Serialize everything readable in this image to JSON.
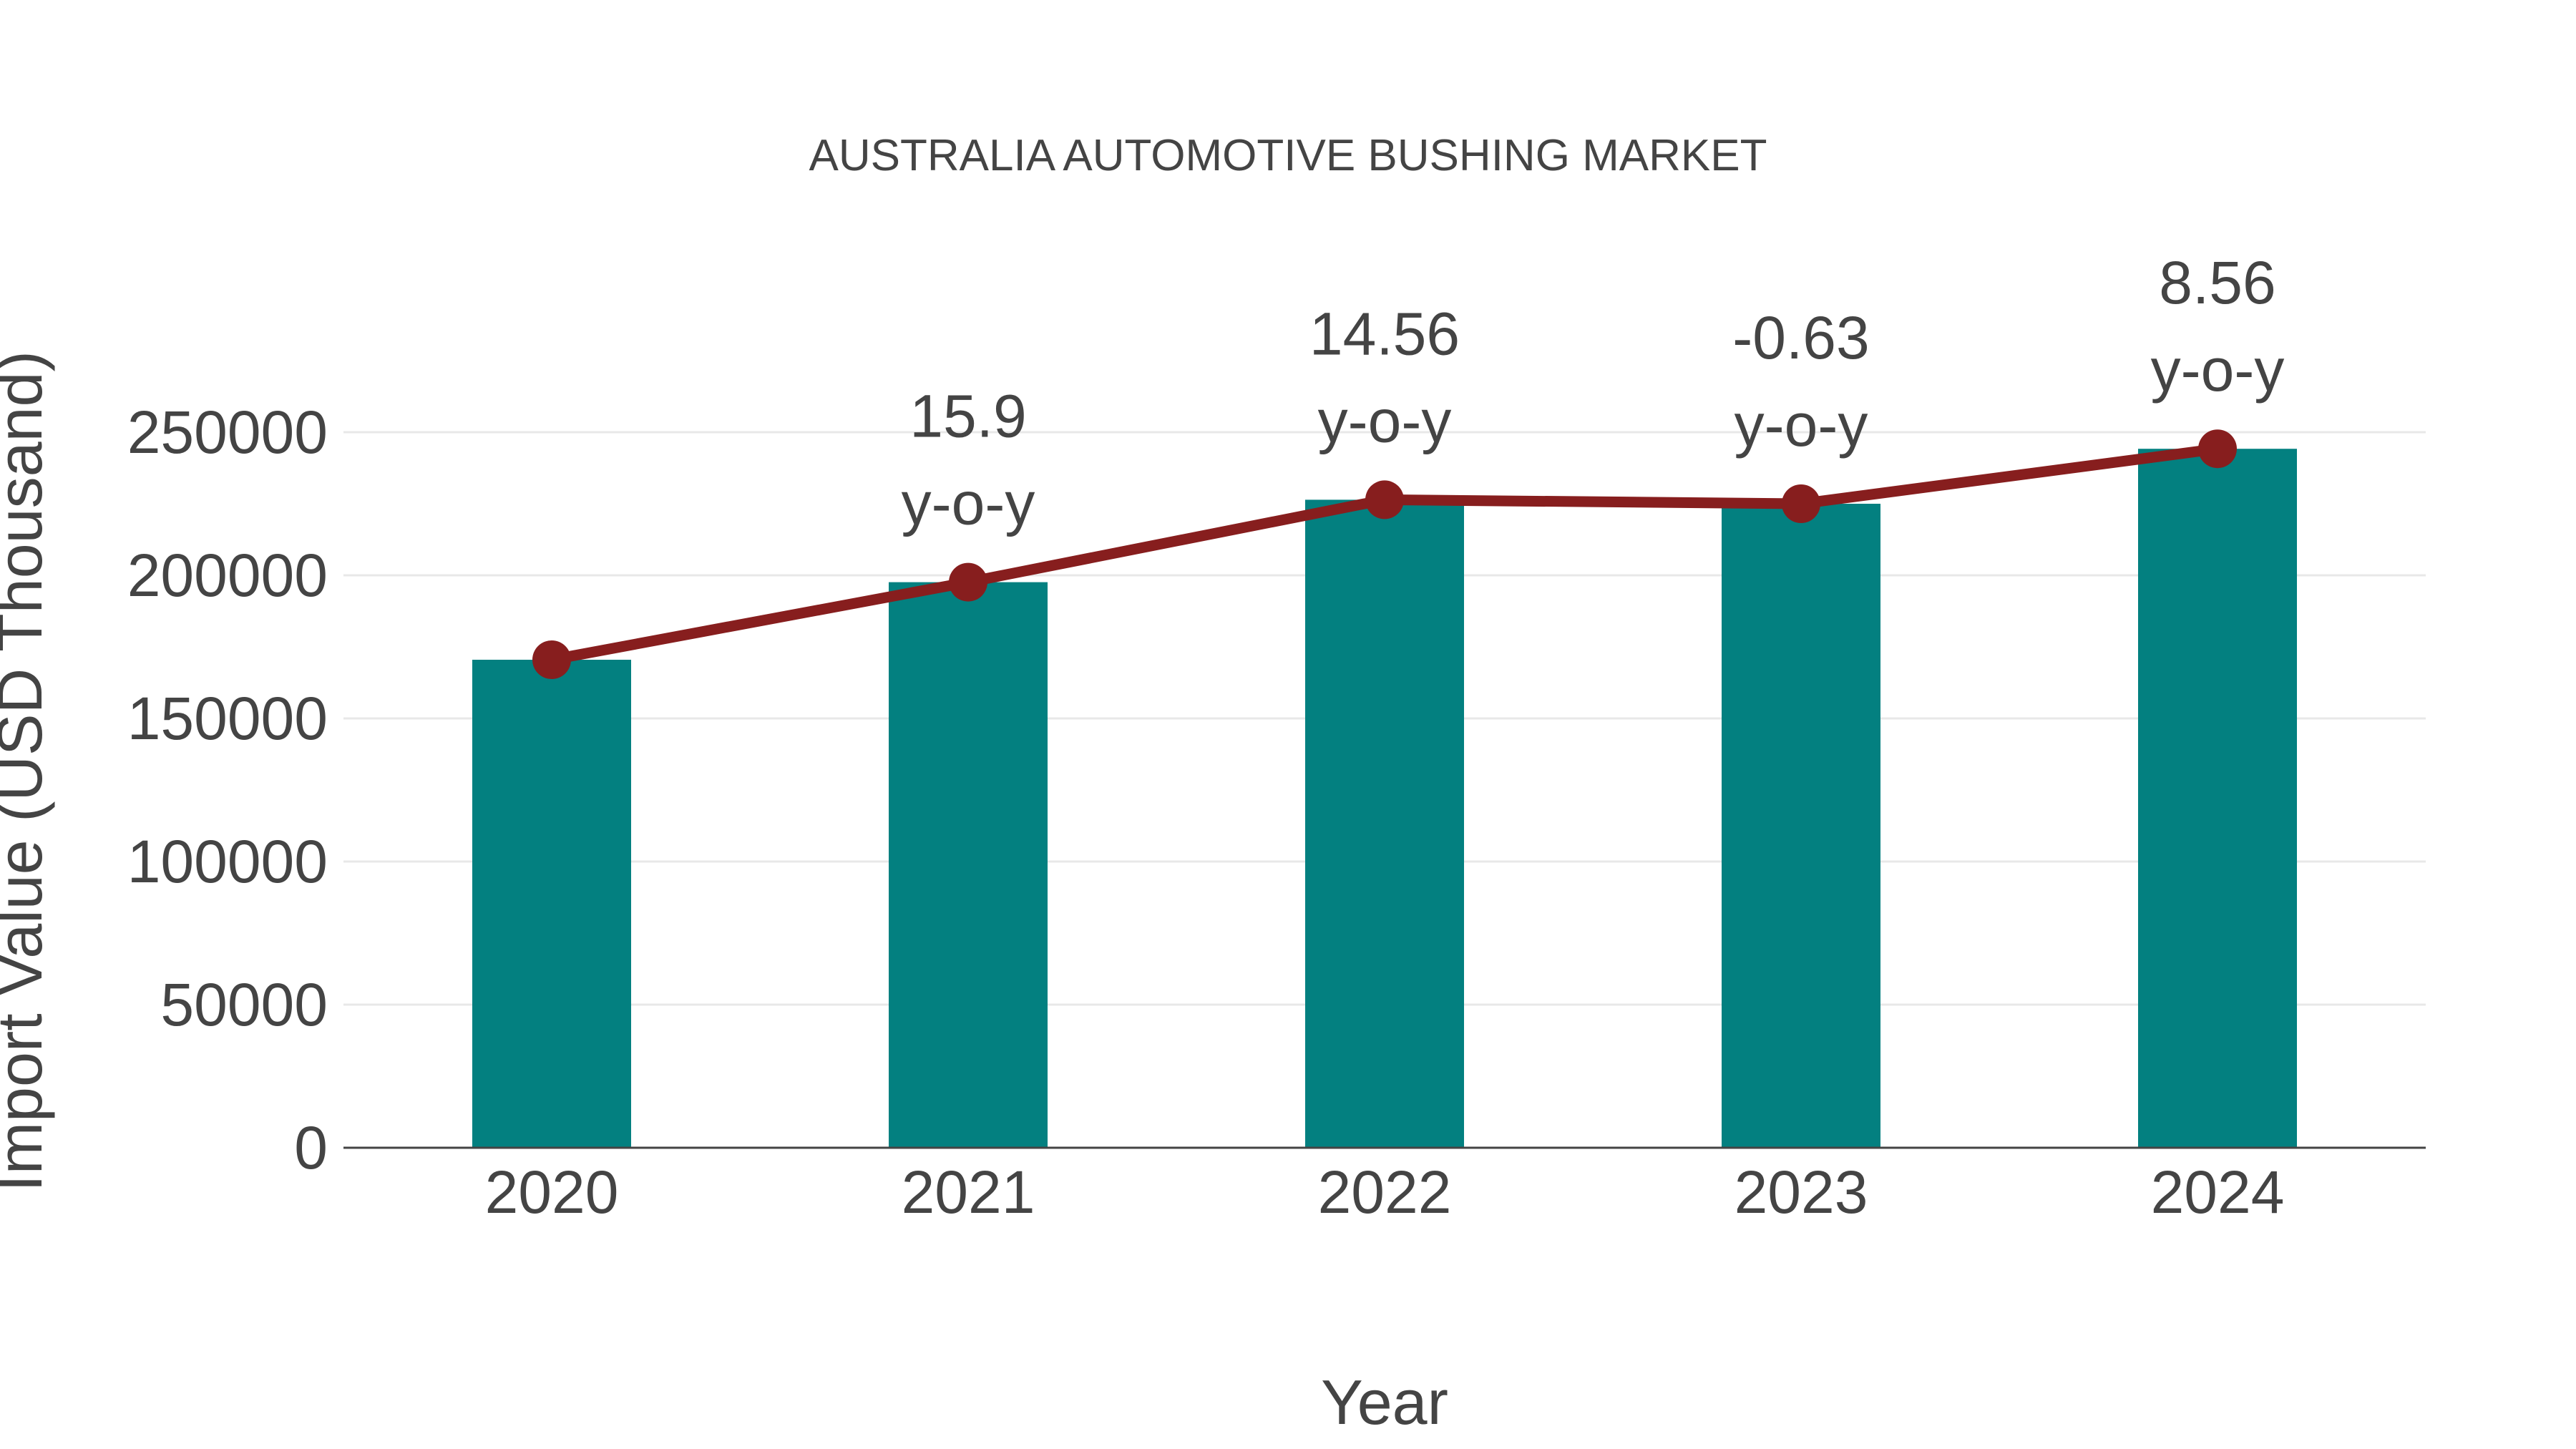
{
  "title": "AUSTRALIA AUTOMOTIVE BUSHING MARKET",
  "colors": {
    "bar": "#038080",
    "line": "#871e1e",
    "marker": "#871e1e",
    "text": "#444444",
    "grid": "#e8e8e8",
    "axis_line": "#444444",
    "background": "#ffffff"
  },
  "chart_data": {
    "type": "bar",
    "title": "AUSTRALIA AUTOMOTIVE BUSHING MARKET",
    "xlabel": "Year",
    "ylabel": "Import Value (USD Thousand)",
    "categories": [
      "2020",
      "2021",
      "2022",
      "2023",
      "2024"
    ],
    "series": [
      {
        "name": "Import Value (USD Thousand)",
        "type": "bar",
        "values": [
          170500,
          197600,
          226400,
          225000,
          244200
        ]
      },
      {
        "name": "y-o-y line",
        "type": "line",
        "values": [
          170500,
          197600,
          226400,
          225000,
          244200
        ]
      }
    ],
    "yoy_percent": [
      null,
      15.9,
      14.56,
      -0.63,
      8.56
    ],
    "point_labels": [
      "",
      "15.9 y-o-y",
      "14.56 y-o-y",
      "-0.63 y-o-y",
      "8.56 y-o-y"
    ],
    "yoy_suffix": "y-o-y",
    "yticks": [
      0,
      50000,
      100000,
      150000,
      200000,
      250000
    ],
    "ytick_labels": [
      "0",
      "50000",
      "100000",
      "150000",
      "200000",
      "250000"
    ],
    "ylim": [
      0,
      280000
    ],
    "grid": "horizontal",
    "legend": "none"
  }
}
